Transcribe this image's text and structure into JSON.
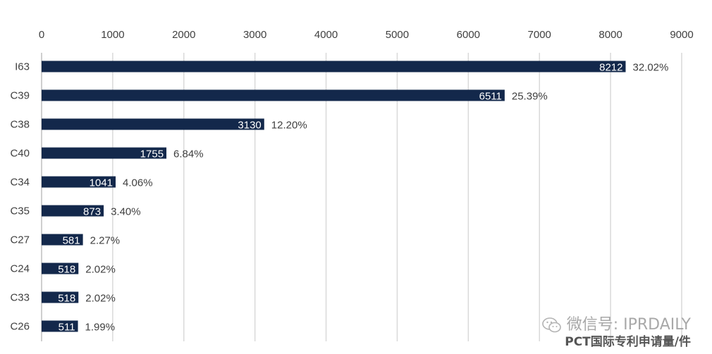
{
  "chart_data": {
    "type": "bar",
    "orientation": "horizontal",
    "categories": [
      "I63",
      "C39",
      "C38",
      "C40",
      "C34",
      "C35",
      "C27",
      "C24",
      "C33",
      "C26"
    ],
    "values": [
      8212,
      6511,
      3130,
      1755,
      1041,
      873,
      581,
      518,
      518,
      511
    ],
    "value_labels": [
      "8212",
      "6511",
      "3130",
      "1755",
      "1041",
      "873",
      "581",
      "518",
      "518",
      "511"
    ],
    "percent_labels": [
      "32.02%",
      "25.39%",
      "12.20%",
      "6.84%",
      "4.06%",
      "3.40%",
      "2.27%",
      "2.02%",
      "2.02%",
      "1.99%"
    ],
    "x_ticks": [
      "0",
      "1000",
      "2000",
      "3000",
      "4000",
      "5000",
      "6000",
      "7000",
      "8000",
      "9000"
    ],
    "xlim": [
      0,
      9000
    ],
    "x_axis_position": "top",
    "grid": true,
    "title": "",
    "xlabel": "",
    "ylabel": "",
    "bar_color": "#13284b"
  },
  "watermark": {
    "line1": "微信号: IPRDAILY",
    "line2": "PCT国际专利申请量/件",
    "icon": "wechat-icon"
  }
}
